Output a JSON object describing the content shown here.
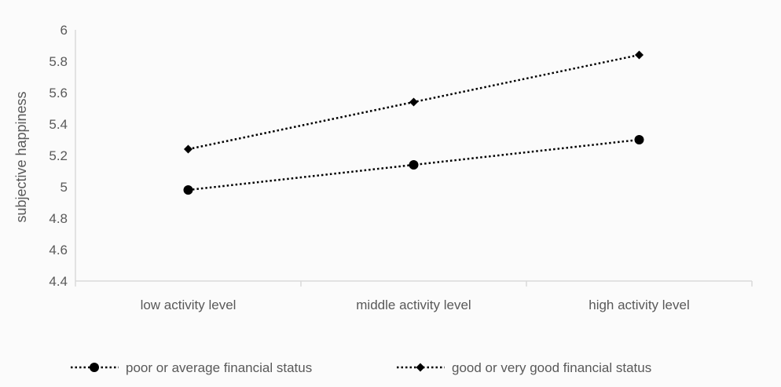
{
  "chart_data": {
    "type": "line",
    "categories": [
      "low activity level",
      "middle activity level",
      "high activity level"
    ],
    "series": [
      {
        "name": "poor or average financial status",
        "values": [
          4.98,
          5.14,
          5.3
        ],
        "marker": "circle"
      },
      {
        "name": "good or very good financial status",
        "values": [
          5.24,
          5.54,
          5.84
        ],
        "marker": "diamond"
      }
    ],
    "xlabel": "",
    "ylabel": "subjective happiness",
    "ylim": [
      4.4,
      6
    ],
    "yticks": [
      "6",
      "5.8",
      "5.6",
      "5.4",
      "5.2",
      "5",
      "4.8",
      "4.6",
      "4.4"
    ],
    "grid": false,
    "legend": "bottom",
    "colors": {
      "line": "#000000",
      "axis": "#d9d9d9",
      "text": "#595959"
    }
  }
}
